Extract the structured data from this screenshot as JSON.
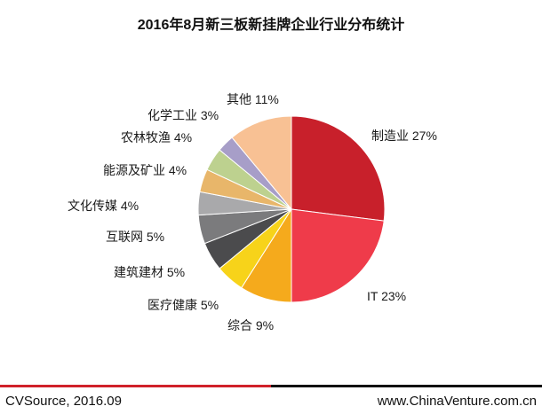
{
  "chart_data": {
    "type": "pie",
    "title": "2016年8月新三板新挂牌企业行业分布统计",
    "slices": [
      {
        "label": "制造业 27%",
        "name": "制造业",
        "value": 27,
        "color": "#c8202b"
      },
      {
        "label": "IT 23%",
        "name": "IT",
        "value": 23,
        "color": "#ef3b4a"
      },
      {
        "label": "综合 9%",
        "name": "综合",
        "value": 9,
        "color": "#f5aa1c"
      },
      {
        "label": "医疗健康 5%",
        "name": "医疗健康",
        "value": 5,
        "color": "#f7d31a"
      },
      {
        "label": "建筑建材 5%",
        "name": "建筑建材",
        "value": 5,
        "color": "#4b4b4d"
      },
      {
        "label": "互联网 5%",
        "name": "互联网",
        "value": 5,
        "color": "#7b7b7d"
      },
      {
        "label": "文化传媒 4%",
        "name": "文化传媒",
        "value": 4,
        "color": "#a9a9ab"
      },
      {
        "label": "能源及矿业 4%",
        "name": "能源及矿业",
        "value": 4,
        "color": "#e8b66a"
      },
      {
        "label": "农林牧渔 4%",
        "name": "农林牧渔",
        "value": 4,
        "color": "#bdd18f"
      },
      {
        "label": "化学工业 3%",
        "name": "化学工业",
        "value": 3,
        "color": "#a79ec8"
      },
      {
        "label": "其他 11%",
        "name": "其他",
        "value": 11,
        "color": "#f8c194"
      }
    ]
  },
  "footer": {
    "source": "CVSource, 2016.09",
    "site": "www.ChinaVenture.com.cn"
  }
}
